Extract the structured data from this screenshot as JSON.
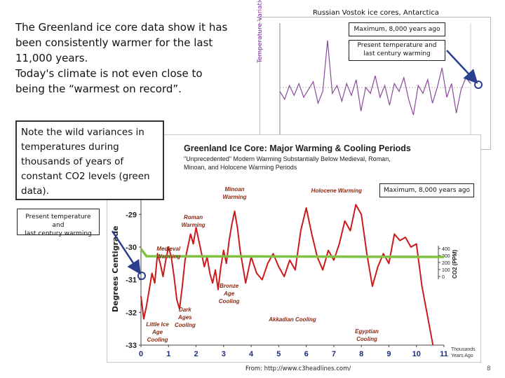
{
  "main_text": {
    "line1": "The Greenland ice core data show it has",
    "line2": "been consistently warmer for the last",
    "line3": "11,000 years.",
    "line4": "Today's climate is not even close to",
    "line5": "being the “warmest on record”."
  },
  "note": {
    "line1": "Note the wild variances in",
    "line2": "temperatures during",
    "line3": "thousands of years of",
    "line4": "constant CO2 levels (green",
    "line5": "data)."
  },
  "vostok": {
    "title": "Russian Vostok ice cores, Antarctica",
    "ylabel": "Temperature Variation",
    "callout_max": "Maximum, 8,000 years ago",
    "callout_present_line1": "Present temperature and",
    "callout_present_line2": "last century warming"
  },
  "greenland": {
    "title": "Greenland Ice Core: Major Warming & Cooling Periods",
    "subtitle_line1": "\"Unprecedented\" Modern Warming Substantially Below Medieval, Roman,",
    "subtitle_line2": "Minoan, and Holocene Warming Periods",
    "ylabel": "Degrees Centigrade",
    "y2label": "CO2 (PPM)",
    "xunit_line1": "Thousands",
    "xunit_line2": "Years Ago",
    "callout_max": "Maximum, 8,000 years ago",
    "callout_present_line1": "Present temperature and",
    "callout_present_line2": "last century warming",
    "annotations": {
      "minoan": [
        "Minoan",
        "Warming"
      ],
      "holocene": [
        "Holocene Warming"
      ],
      "roman": [
        "Roman",
        "Warming"
      ],
      "medieval": [
        "Medieval",
        "Warming"
      ],
      "bronze": [
        "Bronze",
        "Age",
        "Cooling"
      ],
      "dark": [
        "Dark",
        "Ages",
        "Cooling"
      ],
      "little": [
        "Little Ice",
        "Age",
        "Cooling"
      ],
      "akkadian": [
        "Akkadian Cooling"
      ],
      "egyptian": [
        "Egyptian",
        "Cooling"
      ]
    }
  },
  "chart_data": [
    {
      "type": "line",
      "title": "Greenland Ice Core: Major Warming & Cooling Periods",
      "xlabel": "Thousands Years Ago",
      "ylabel": "Degrees Centigrade",
      "xlim": [
        0,
        11
      ],
      "ylim": [
        -33,
        -28.5
      ],
      "x_ticks": [
        0,
        1,
        2,
        3,
        4,
        5,
        6,
        7,
        8,
        9,
        10,
        11
      ],
      "y_ticks": [
        -29,
        -30,
        -31,
        -32,
        -33
      ],
      "y2_ticks": [
        400,
        300,
        200,
        100,
        0
      ],
      "series": [
        {
          "name": "Temperature",
          "color": "#cc1a1a",
          "x": [
            0,
            0.1,
            0.2,
            0.3,
            0.4,
            0.5,
            0.6,
            0.7,
            0.8,
            0.9,
            1.0,
            1.1,
            1.2,
            1.3,
            1.4,
            1.5,
            1.6,
            1.7,
            1.8,
            1.9,
            2.0,
            2.1,
            2.2,
            2.3,
            2.4,
            2.5,
            2.6,
            2.7,
            2.8,
            2.9,
            3.0,
            3.1,
            3.2,
            3.3,
            3.4,
            3.5,
            3.6,
            3.7,
            3.8,
            3.9,
            4.0,
            4.2,
            4.4,
            4.6,
            4.8,
            5.0,
            5.2,
            5.4,
            5.6,
            5.8,
            6.0,
            6.2,
            6.4,
            6.6,
            6.8,
            7.0,
            7.2,
            7.4,
            7.6,
            7.8,
            8.0,
            8.2,
            8.4,
            8.6,
            8.8,
            9.0,
            9.2,
            9.4,
            9.6,
            9.8,
            10.0,
            10.2,
            10.4,
            10.6
          ],
          "values": [
            -31.5,
            -32.2,
            -31.8,
            -31.3,
            -30.8,
            -31.1,
            -30.2,
            -30.5,
            -30.9,
            -30.4,
            -30.0,
            -30.3,
            -30.9,
            -31.6,
            -31.9,
            -31.2,
            -30.4,
            -30.0,
            -29.6,
            -29.9,
            -29.4,
            -29.8,
            -30.2,
            -30.6,
            -30.3,
            -30.8,
            -31.1,
            -30.7,
            -31.3,
            -30.6,
            -30.1,
            -30.5,
            -29.8,
            -29.3,
            -28.9,
            -29.4,
            -30.1,
            -30.6,
            -31.1,
            -30.7,
            -30.3,
            -30.8,
            -31.0,
            -30.5,
            -30.2,
            -30.6,
            -30.9,
            -30.4,
            -30.7,
            -29.5,
            -28.8,
            -29.6,
            -30.3,
            -30.7,
            -30.1,
            -30.4,
            -29.9,
            -29.2,
            -29.5,
            -28.7,
            -29.0,
            -30.2,
            -31.2,
            -30.6,
            -30.2,
            -30.5,
            -29.6,
            -29.8,
            -29.7,
            -30.0,
            -29.9,
            -31.2,
            -32.1,
            -33.0
          ]
        },
        {
          "name": "CO2 (PPM)",
          "color": "#7fc242",
          "x": [
            0,
            0.2,
            11
          ],
          "values": [
            395,
            290,
            280
          ]
        }
      ]
    },
    {
      "type": "line",
      "title": "Russian Vostok ice cores, Antarctica",
      "ylabel": "Temperature Variation",
      "series": [
        {
          "name": "Vostok temperature",
          "color": "#8a4a9a",
          "x": [
            0,
            1,
            2,
            3,
            4,
            5,
            6,
            7,
            8,
            9,
            10,
            11,
            12,
            13,
            14,
            15,
            16,
            17,
            18,
            19,
            20,
            21,
            22,
            23,
            24,
            25,
            26,
            27,
            28,
            29,
            30,
            31,
            32,
            33,
            34,
            35,
            36,
            37,
            38,
            39,
            40
          ],
          "values": [
            -0.2,
            -0.6,
            0.1,
            -0.4,
            0.2,
            -0.5,
            -0.1,
            0.3,
            -0.8,
            -0.2,
            2.4,
            -0.3,
            0.1,
            -0.7,
            0.2,
            -0.4,
            0.4,
            -1.2,
            0.0,
            -0.3,
            0.6,
            -0.5,
            0.1,
            -0.9,
            0.2,
            -0.2,
            0.5,
            -0.6,
            -1.4,
            0.1,
            -0.3,
            0.4,
            -0.8,
            0.0,
            1.0,
            -0.5,
            0.2,
            -1.3,
            -0.1,
            0.5,
            0.2
          ]
        }
      ]
    }
  ],
  "footer": {
    "source": "From: http://www.c3headlines.com/",
    "page_number": "8"
  }
}
